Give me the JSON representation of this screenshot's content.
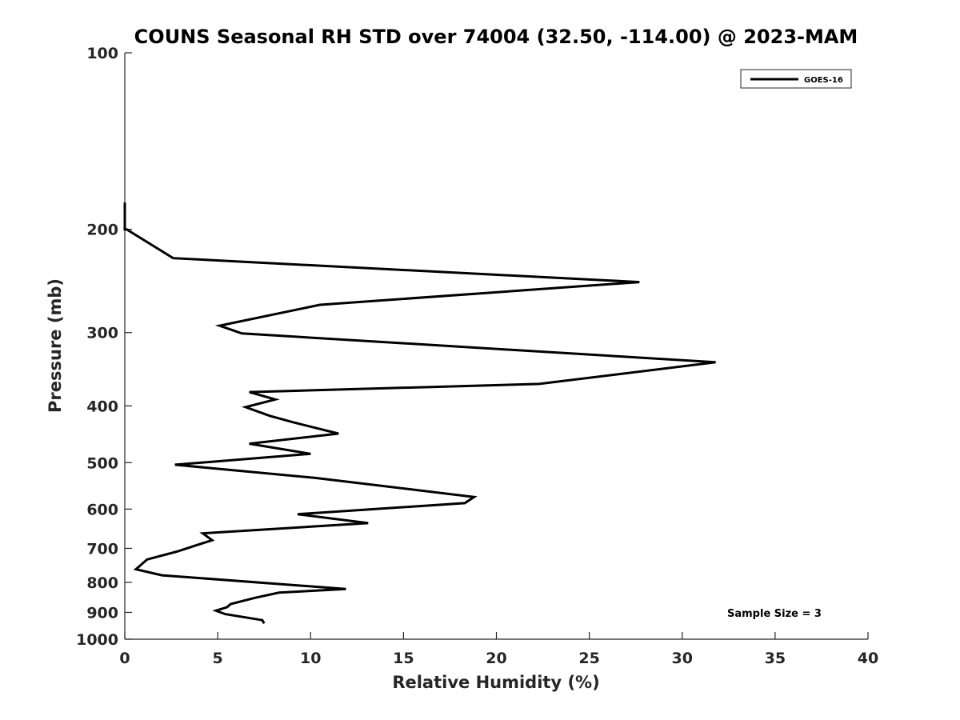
{
  "chart_data": {
    "type": "line",
    "title": "COUNS Seasonal RH STD over 74004 (32.50, -114.00) @ 2023-MAM",
    "xlabel": "Relative Humidity (%)",
    "ylabel": "Pressure (mb)",
    "xlim": [
      0,
      40
    ],
    "ylim": [
      100,
      1000
    ],
    "yscale": "log",
    "yreversed": true,
    "xticks": [
      0,
      5,
      10,
      15,
      20,
      25,
      30,
      35,
      40
    ],
    "xtick_labels": [
      "0",
      "5",
      "10",
      "15",
      "20",
      "25",
      "30",
      "35",
      "40"
    ],
    "yticks": [
      100,
      200,
      300,
      400,
      500,
      600,
      700,
      800,
      900,
      1000
    ],
    "ytick_labels": [
      "100",
      "200",
      "300",
      "400",
      "500",
      "600",
      "700",
      "800",
      "900",
      "1000"
    ],
    "grid": false,
    "legend_position": "top-right",
    "annotation": "Sample Size = 3",
    "series": [
      {
        "name": "GOES-16",
        "color": "#000000",
        "x": [
          0.0,
          0.0,
          0.0,
          0.1,
          2.6,
          27.7,
          10.5,
          5.1,
          6.3,
          31.8,
          22.3,
          6.7,
          8.1,
          6.5,
          7.8,
          9.1,
          11.5,
          6.7,
          10.0,
          2.7,
          10.3,
          18.8,
          18.3,
          9.3,
          13.1,
          4.2,
          4.7,
          4.0,
          2.8,
          1.2,
          0.6,
          2.0,
          11.9,
          8.3,
          7.0,
          5.7,
          5.5,
          4.9,
          5.4,
          7.4,
          7.5
        ],
        "y": [
          180,
          199,
          200,
          200,
          224,
          246,
          269,
          292,
          301,
          337,
          367,
          379,
          390,
          402,
          416,
          427,
          446,
          464,
          483,
          504,
          531,
          572,
          586,
          612,
          634,
          660,
          678,
          689,
          709,
          731,
          760,
          778,
          821,
          833,
          850,
          871,
          882,
          894,
          906,
          928,
          940
        ]
      }
    ]
  }
}
